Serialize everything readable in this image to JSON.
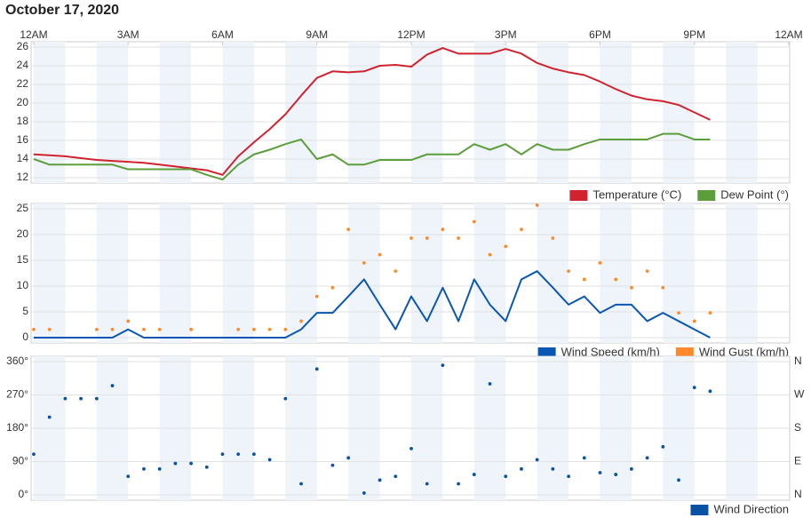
{
  "title": "October 17, 2020",
  "chart_data": [
    {
      "type": "line",
      "x": [
        0,
        0.5,
        1,
        1.5,
        2,
        2.5,
        3,
        3.5,
        4,
        4.5,
        5,
        5.5,
        6,
        6.5,
        7,
        7.5,
        8,
        8.5,
        9,
        9.5,
        10,
        10.5,
        11,
        11.5,
        12,
        12.5,
        13,
        13.5,
        14,
        14.5,
        15,
        15.5,
        16,
        16.5,
        17,
        17.5,
        18,
        18.5,
        19,
        19.5,
        20,
        20.5,
        21,
        21.5
      ],
      "xlim": [
        0,
        24
      ],
      "xticks": [
        {
          "value": 0,
          "label": "12AM"
        },
        {
          "value": 3,
          "label": "3AM"
        },
        {
          "value": 6,
          "label": "6AM"
        },
        {
          "value": 9,
          "label": "9AM"
        },
        {
          "value": 12,
          "label": "12PM"
        },
        {
          "value": 15,
          "label": "3PM"
        },
        {
          "value": 18,
          "label": "6PM"
        },
        {
          "value": 21,
          "label": "9PM"
        },
        {
          "value": 24,
          "label": "12AM"
        }
      ],
      "ylim": [
        12,
        26
      ],
      "yticks": [
        12,
        14,
        16,
        18,
        20,
        22,
        24,
        26
      ],
      "legend": "bottom right",
      "series": [
        {
          "name": "Temperature (°C)",
          "color": "#d0232f",
          "type": "line",
          "values": [
            14.5,
            14.4,
            14.3,
            14.1,
            13.9,
            13.8,
            13.7,
            13.6,
            13.4,
            13.2,
            13.0,
            12.8,
            12.3,
            14.3,
            15.8,
            17.2,
            18.8,
            20.8,
            22.7,
            23.4,
            23.3,
            23.4,
            24.0,
            24.1,
            23.9,
            25.2,
            25.9,
            25.3,
            25.3,
            25.3,
            25.8,
            25.3,
            24.3,
            23.7,
            23.3,
            23.0,
            22.3,
            21.5,
            20.8,
            20.4,
            20.2,
            19.8,
            19.0,
            18.2
          ]
        },
        {
          "name": "Dew Point (°)",
          "color": "#5c9e3c",
          "type": "line",
          "values": [
            14.0,
            13.4,
            13.4,
            13.4,
            13.4,
            13.4,
            12.9,
            12.9,
            12.9,
            12.9,
            12.9,
            12.3,
            11.8,
            13.4,
            14.5,
            15.0,
            15.6,
            16.1,
            14.0,
            14.5,
            13.4,
            13.4,
            13.9,
            13.9,
            13.9,
            14.5,
            14.5,
            14.5,
            15.6,
            15.0,
            15.6,
            14.5,
            15.6,
            15.0,
            15.0,
            15.6,
            16.1,
            16.1,
            16.1,
            16.1,
            16.7,
            16.7,
            16.1,
            16.1
          ]
        }
      ]
    },
    {
      "type": "line",
      "x": [
        0,
        0.5,
        1,
        1.5,
        2,
        2.5,
        3,
        3.5,
        4,
        4.5,
        5,
        5.5,
        6,
        6.5,
        7,
        7.5,
        8,
        8.5,
        9,
        9.5,
        10,
        10.5,
        11,
        11.5,
        12,
        12.5,
        13,
        13.5,
        14,
        14.5,
        15,
        15.5,
        16,
        16.5,
        17,
        17.5,
        18,
        18.5,
        19,
        19.5,
        20,
        20.5,
        21,
        21.5
      ],
      "xlim": [
        0,
        24
      ],
      "ylim": [
        0,
        25
      ],
      "yticks": [
        0,
        5,
        10,
        15,
        20,
        25
      ],
      "legend": "bottom right",
      "series": [
        {
          "name": "Wind Speed (km/h)",
          "color": "#0a56b4",
          "type": "line",
          "values": [
            0,
            0,
            0,
            0,
            0,
            0,
            1.6,
            0,
            0,
            0,
            0,
            0,
            0,
            0,
            0,
            0,
            0,
            1.6,
            4.8,
            4.8,
            8,
            11.3,
            6.4,
            1.6,
            8,
            3.2,
            9.7,
            3.2,
            11.3,
            6.4,
            3.2,
            11.3,
            12.9,
            9.7,
            6.4,
            8,
            4.8,
            6.4,
            6.4,
            3.2,
            4.8,
            3.2,
            1.6,
            0
          ]
        },
        {
          "name": "Wind Gust (km/h)",
          "color": "#ff8a2b",
          "type": "scatter",
          "values": [
            1.6,
            1.6,
            null,
            null,
            1.6,
            1.6,
            3.2,
            1.6,
            1.6,
            null,
            1.6,
            null,
            null,
            1.6,
            1.6,
            1.6,
            1.6,
            3.2,
            8,
            9.7,
            21,
            14.5,
            16.1,
            12.9,
            19.3,
            19.3,
            21,
            19.3,
            22.5,
            16.1,
            17.7,
            21,
            25.7,
            19.3,
            12.9,
            11.3,
            14.5,
            11.3,
            9.7,
            12.9,
            9.7,
            4.8,
            3.2,
            4.8
          ]
        }
      ]
    },
    {
      "type": "scatter",
      "x": [
        0,
        0.5,
        1,
        1.5,
        2,
        2.5,
        3,
        3.5,
        4,
        4.5,
        5,
        5.5,
        6,
        6.5,
        7,
        7.5,
        8,
        8.5,
        9,
        9.5,
        10,
        10.5,
        11,
        11.5,
        12,
        12.5,
        13,
        13.5,
        14,
        14.5,
        15,
        15.5,
        16,
        16.5,
        17,
        17.5,
        18,
        18.5,
        19,
        19.5,
        20,
        20.5,
        21,
        21.5
      ],
      "xlim": [
        0,
        24
      ],
      "ylim": [
        0,
        360
      ],
      "yticks": [
        {
          "value": 0,
          "label": "0°"
        },
        {
          "value": 90,
          "label": "90°"
        },
        {
          "value": 180,
          "label": "180°"
        },
        {
          "value": 270,
          "label": "270°"
        },
        {
          "value": 360,
          "label": "360°"
        }
      ],
      "y2lim": [
        0,
        360
      ],
      "y2ticks": [
        {
          "value": 0,
          "label": "N"
        },
        {
          "value": 90,
          "label": "E"
        },
        {
          "value": 180,
          "label": "S"
        },
        {
          "value": 270,
          "label": "W"
        },
        {
          "value": 360,
          "label": "N"
        }
      ],
      "legend": "bottom right",
      "series": [
        {
          "name": "Wind Direction",
          "color": "#0a52a3",
          "type": "scatter",
          "values": [
            110,
            210,
            260,
            260,
            260,
            295,
            50,
            70,
            70,
            85,
            85,
            75,
            110,
            110,
            110,
            95,
            260,
            30,
            340,
            80,
            100,
            5,
            40,
            50,
            125,
            30,
            350,
            30,
            55,
            300,
            50,
            70,
            95,
            70,
            50,
            100,
            60,
            55,
            70,
            100,
            130,
            40,
            290,
            280
          ]
        }
      ]
    }
  ]
}
